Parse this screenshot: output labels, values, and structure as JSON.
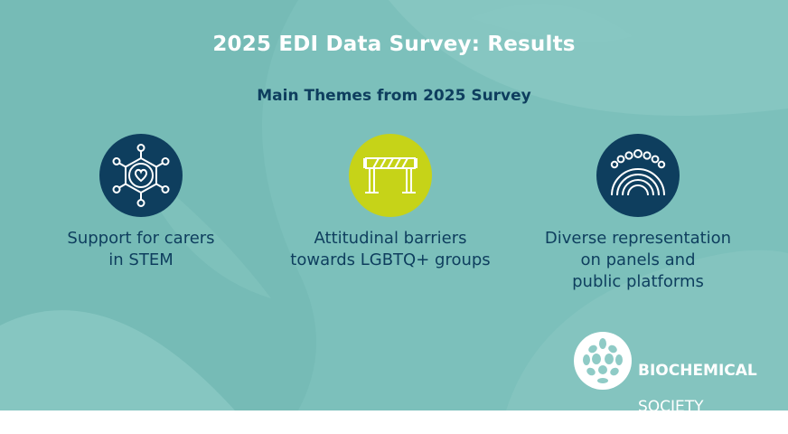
{
  "slide": {
    "title": "2025 EDI Data Survey: Results",
    "subtitle": "Main Themes from 2025 Survey",
    "background_color": "#7cc0bb"
  },
  "themes": [
    {
      "label": "Support for carers\nin STEM",
      "icon": "network-heart-icon",
      "circle_color": "#0e3e5e"
    },
    {
      "label": "Attitudinal barriers\ntowards LGBTQ+ groups",
      "icon": "barrier-icon",
      "circle_color": "#c6d318"
    },
    {
      "label": "Diverse representation\non panels and\npublic platforms",
      "icon": "people-rainbow-icon",
      "circle_color": "#0e3e5e"
    }
  ],
  "logo": {
    "line1": "BIOCHEMICAL",
    "line2": "SOCIETY",
    "icon": "biochemical-society-logo"
  }
}
